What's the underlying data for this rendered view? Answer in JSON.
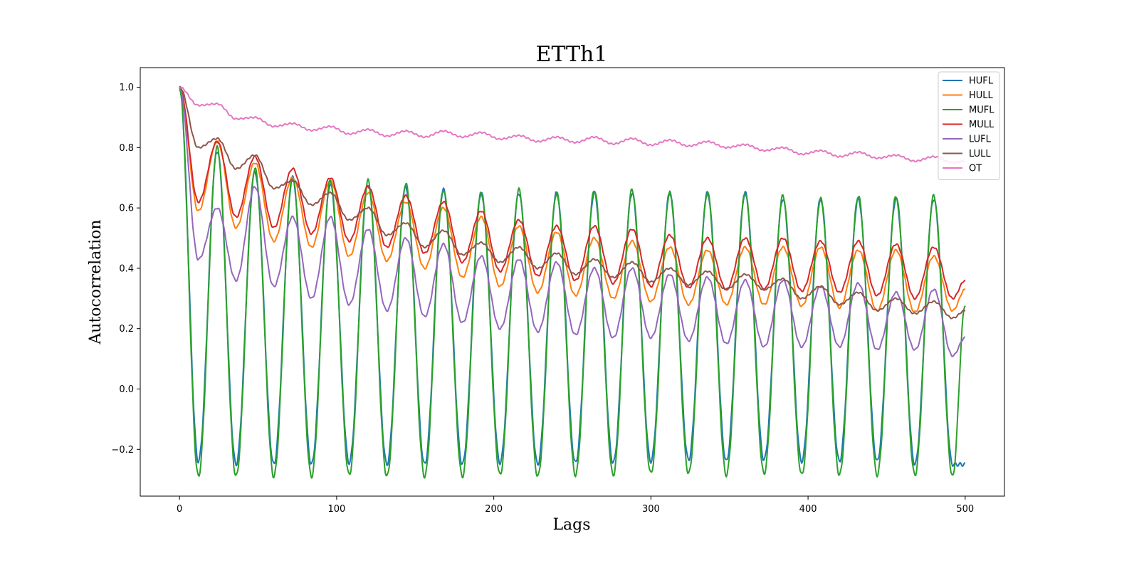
{
  "chart_data": {
    "type": "line",
    "title": "ETTh1",
    "xlabel": "Lags",
    "ylabel": "Autocorrelation",
    "xlim": [
      -25,
      525
    ],
    "ylim": [
      -0.355,
      1.065
    ],
    "x_range": [
      0,
      500
    ],
    "xticks": [
      0,
      100,
      200,
      300,
      400,
      500
    ],
    "yticks": [
      -0.2,
      0.0,
      0.2,
      0.4,
      0.6,
      0.8,
      1.0
    ],
    "ytick_labels": [
      "−0.2",
      "0.0",
      "0.2",
      "0.4",
      "0.6",
      "0.8",
      "1.0"
    ],
    "grid": false,
    "legend_position": "top-right",
    "series": [
      {
        "name": "HUFL",
        "color": "#1f77b4",
        "period": 24,
        "peaks": [
          [
            0,
            1.0
          ],
          [
            24,
            0.79
          ],
          [
            48,
            0.72
          ],
          [
            72,
            0.7
          ],
          [
            96,
            0.68
          ],
          [
            120,
            0.68
          ],
          [
            144,
            0.67
          ],
          [
            168,
            0.66
          ],
          [
            192,
            0.65
          ],
          [
            216,
            0.65
          ],
          [
            240,
            0.65
          ],
          [
            264,
            0.65
          ],
          [
            288,
            0.65
          ],
          [
            312,
            0.65
          ],
          [
            336,
            0.65
          ],
          [
            360,
            0.65
          ],
          [
            384,
            0.63
          ],
          [
            408,
            0.63
          ],
          [
            432,
            0.63
          ],
          [
            456,
            0.63
          ],
          [
            480,
            0.63
          ]
        ],
        "troughs": [
          [
            12,
            -0.24
          ],
          [
            36,
            -0.25
          ],
          [
            60,
            -0.25
          ],
          [
            84,
            -0.25
          ],
          [
            108,
            -0.245
          ],
          [
            132,
            -0.25
          ],
          [
            156,
            -0.25
          ],
          [
            180,
            -0.25
          ],
          [
            204,
            -0.245
          ],
          [
            228,
            -0.25
          ],
          [
            252,
            -0.245
          ],
          [
            276,
            -0.245
          ],
          [
            300,
            -0.24
          ],
          [
            324,
            -0.235
          ],
          [
            348,
            -0.24
          ],
          [
            372,
            -0.235
          ],
          [
            396,
            -0.24
          ],
          [
            420,
            -0.24
          ],
          [
            444,
            -0.24
          ],
          [
            468,
            -0.25
          ],
          [
            492,
            -0.25
          ]
        ]
      },
      {
        "name": "HULL",
        "color": "#ff7f0e",
        "period": 24,
        "peaks": [
          [
            0,
            1.0
          ],
          [
            24,
            0.82
          ],
          [
            48,
            0.75
          ],
          [
            72,
            0.7
          ],
          [
            96,
            0.69
          ],
          [
            120,
            0.65
          ],
          [
            144,
            0.62
          ],
          [
            168,
            0.6
          ],
          [
            192,
            0.57
          ],
          [
            216,
            0.54
          ],
          [
            240,
            0.52
          ],
          [
            264,
            0.5
          ],
          [
            288,
            0.49
          ],
          [
            312,
            0.47
          ],
          [
            336,
            0.46
          ],
          [
            360,
            0.47
          ],
          [
            384,
            0.47
          ],
          [
            408,
            0.47
          ],
          [
            432,
            0.46
          ],
          [
            456,
            0.46
          ],
          [
            480,
            0.44
          ]
        ],
        "troughs": [
          [
            12,
            0.59
          ],
          [
            36,
            0.535
          ],
          [
            60,
            0.49
          ],
          [
            84,
            0.47
          ],
          [
            108,
            0.44
          ],
          [
            132,
            0.425
          ],
          [
            156,
            0.4
          ],
          [
            180,
            0.37
          ],
          [
            204,
            0.34
          ],
          [
            228,
            0.32
          ],
          [
            252,
            0.31
          ],
          [
            276,
            0.3
          ],
          [
            300,
            0.29
          ],
          [
            324,
            0.28
          ],
          [
            348,
            0.28
          ],
          [
            372,
            0.28
          ],
          [
            396,
            0.275
          ],
          [
            420,
            0.27
          ],
          [
            444,
            0.26
          ],
          [
            468,
            0.255
          ],
          [
            492,
            0.26
          ]
        ],
        "end": [
          500,
          0.33
        ]
      },
      {
        "name": "MUFL",
        "color": "#2ca02c",
        "period": 24,
        "peaks": [
          [
            0,
            1.0
          ],
          [
            24,
            0.8
          ],
          [
            48,
            0.73
          ],
          [
            72,
            0.7
          ],
          [
            96,
            0.69
          ],
          [
            120,
            0.69
          ],
          [
            144,
            0.68
          ],
          [
            168,
            0.66
          ],
          [
            192,
            0.65
          ],
          [
            216,
            0.66
          ],
          [
            240,
            0.65
          ],
          [
            264,
            0.66
          ],
          [
            288,
            0.66
          ],
          [
            312,
            0.65
          ],
          [
            336,
            0.65
          ],
          [
            360,
            0.65
          ],
          [
            384,
            0.64
          ],
          [
            408,
            0.63
          ],
          [
            432,
            0.64
          ],
          [
            456,
            0.64
          ],
          [
            480,
            0.64
          ]
        ],
        "troughs": [
          [
            12,
            -0.29
          ],
          [
            36,
            -0.29
          ],
          [
            60,
            -0.29
          ],
          [
            84,
            -0.29
          ],
          [
            108,
            -0.285
          ],
          [
            132,
            -0.29
          ],
          [
            156,
            -0.29
          ],
          [
            180,
            -0.29
          ],
          [
            204,
            -0.285
          ],
          [
            228,
            -0.29
          ],
          [
            252,
            -0.285
          ],
          [
            276,
            -0.285
          ],
          [
            300,
            -0.28
          ],
          [
            324,
            -0.28
          ],
          [
            348,
            -0.285
          ],
          [
            372,
            -0.28
          ],
          [
            396,
            -0.285
          ],
          [
            420,
            -0.285
          ],
          [
            444,
            -0.285
          ],
          [
            468,
            -0.285
          ],
          [
            492,
            -0.29
          ]
        ],
        "end": [
          500,
          0.28
        ]
      },
      {
        "name": "MULL",
        "color": "#d62728",
        "period": 24,
        "peaks": [
          [
            0,
            1.0
          ],
          [
            24,
            0.82
          ],
          [
            48,
            0.77
          ],
          [
            72,
            0.73
          ],
          [
            96,
            0.7
          ],
          [
            120,
            0.67
          ],
          [
            144,
            0.64
          ],
          [
            168,
            0.62
          ],
          [
            192,
            0.59
          ],
          [
            216,
            0.56
          ],
          [
            240,
            0.54
          ],
          [
            264,
            0.54
          ],
          [
            288,
            0.53
          ],
          [
            312,
            0.51
          ],
          [
            336,
            0.5
          ],
          [
            360,
            0.5
          ],
          [
            384,
            0.5
          ],
          [
            408,
            0.49
          ],
          [
            432,
            0.49
          ],
          [
            456,
            0.48
          ],
          [
            480,
            0.47
          ]
        ],
        "troughs": [
          [
            12,
            0.62
          ],
          [
            36,
            0.57
          ],
          [
            60,
            0.535
          ],
          [
            84,
            0.515
          ],
          [
            108,
            0.49
          ],
          [
            132,
            0.47
          ],
          [
            156,
            0.45
          ],
          [
            180,
            0.42
          ],
          [
            204,
            0.39
          ],
          [
            228,
            0.375
          ],
          [
            252,
            0.36
          ],
          [
            276,
            0.35
          ],
          [
            300,
            0.34
          ],
          [
            324,
            0.335
          ],
          [
            348,
            0.33
          ],
          [
            372,
            0.33
          ],
          [
            396,
            0.325
          ],
          [
            420,
            0.32
          ],
          [
            444,
            0.31
          ],
          [
            468,
            0.3
          ],
          [
            492,
            0.3
          ]
        ],
        "end": [
          500,
          0.36
        ]
      },
      {
        "name": "LUFL",
        "color": "#9467bd",
        "period": 24,
        "peaks": [
          [
            0,
            1.0
          ],
          [
            24,
            0.6
          ],
          [
            48,
            0.67
          ],
          [
            72,
            0.57
          ],
          [
            96,
            0.57
          ],
          [
            120,
            0.53
          ],
          [
            144,
            0.5
          ],
          [
            168,
            0.48
          ],
          [
            192,
            0.44
          ],
          [
            216,
            0.43
          ],
          [
            240,
            0.42
          ],
          [
            264,
            0.4
          ],
          [
            288,
            0.4
          ],
          [
            312,
            0.38
          ],
          [
            336,
            0.37
          ],
          [
            360,
            0.36
          ],
          [
            384,
            0.36
          ],
          [
            408,
            0.34
          ],
          [
            432,
            0.35
          ],
          [
            456,
            0.32
          ],
          [
            480,
            0.33
          ]
        ],
        "troughs": [
          [
            12,
            0.43
          ],
          [
            36,
            0.36
          ],
          [
            60,
            0.34
          ],
          [
            84,
            0.3
          ],
          [
            108,
            0.28
          ],
          [
            132,
            0.26
          ],
          [
            156,
            0.24
          ],
          [
            180,
            0.22
          ],
          [
            204,
            0.2
          ],
          [
            228,
            0.19
          ],
          [
            252,
            0.18
          ],
          [
            276,
            0.17
          ],
          [
            300,
            0.17
          ],
          [
            324,
            0.16
          ],
          [
            348,
            0.15
          ],
          [
            372,
            0.14
          ],
          [
            396,
            0.14
          ],
          [
            420,
            0.14
          ],
          [
            444,
            0.13
          ],
          [
            468,
            0.13
          ],
          [
            492,
            0.11
          ]
        ],
        "end": [
          500,
          0.17
        ]
      },
      {
        "name": "LULL",
        "color": "#8c564b",
        "period": 24,
        "peaks": [
          [
            0,
            1.0
          ],
          [
            24,
            0.83
          ],
          [
            48,
            0.775
          ],
          [
            72,
            0.69
          ],
          [
            96,
            0.65
          ],
          [
            120,
            0.6
          ],
          [
            144,
            0.55
          ],
          [
            168,
            0.525
          ],
          [
            192,
            0.485
          ],
          [
            216,
            0.47
          ],
          [
            240,
            0.45
          ],
          [
            264,
            0.43
          ],
          [
            288,
            0.42
          ],
          [
            312,
            0.4
          ],
          [
            336,
            0.39
          ],
          [
            360,
            0.38
          ],
          [
            384,
            0.365
          ],
          [
            408,
            0.34
          ],
          [
            432,
            0.32
          ],
          [
            456,
            0.3
          ],
          [
            480,
            0.29
          ]
        ],
        "troughs": [
          [
            12,
            0.8
          ],
          [
            36,
            0.73
          ],
          [
            60,
            0.665
          ],
          [
            84,
            0.61
          ],
          [
            108,
            0.56
          ],
          [
            132,
            0.51
          ],
          [
            156,
            0.47
          ],
          [
            180,
            0.445
          ],
          [
            204,
            0.42
          ],
          [
            228,
            0.4
          ],
          [
            252,
            0.38
          ],
          [
            276,
            0.37
          ],
          [
            300,
            0.355
          ],
          [
            324,
            0.345
          ],
          [
            348,
            0.33
          ],
          [
            372,
            0.33
          ],
          [
            396,
            0.3
          ],
          [
            420,
            0.28
          ],
          [
            444,
            0.26
          ],
          [
            468,
            0.25
          ],
          [
            492,
            0.235
          ]
        ],
        "end": [
          500,
          0.26
        ]
      },
      {
        "name": "OT",
        "color": "#e377c2",
        "period": 24,
        "peaks": [
          [
            0,
            1.0
          ],
          [
            24,
            0.945
          ],
          [
            48,
            0.9
          ],
          [
            72,
            0.88
          ],
          [
            96,
            0.87
          ],
          [
            120,
            0.86
          ],
          [
            144,
            0.855
          ],
          [
            168,
            0.855
          ],
          [
            192,
            0.85
          ],
          [
            216,
            0.84
          ],
          [
            240,
            0.835
          ],
          [
            264,
            0.835
          ],
          [
            288,
            0.83
          ],
          [
            312,
            0.825
          ],
          [
            336,
            0.82
          ],
          [
            360,
            0.81
          ],
          [
            384,
            0.8
          ],
          [
            408,
            0.79
          ],
          [
            432,
            0.785
          ],
          [
            456,
            0.775
          ],
          [
            480,
            0.77
          ]
        ],
        "troughs": [
          [
            12,
            0.94
          ],
          [
            36,
            0.895
          ],
          [
            60,
            0.87
          ],
          [
            84,
            0.857
          ],
          [
            108,
            0.845
          ],
          [
            132,
            0.838
          ],
          [
            156,
            0.835
          ],
          [
            180,
            0.835
          ],
          [
            204,
            0.828
          ],
          [
            228,
            0.82
          ],
          [
            252,
            0.817
          ],
          [
            276,
            0.812
          ],
          [
            300,
            0.808
          ],
          [
            324,
            0.805
          ],
          [
            348,
            0.8
          ],
          [
            372,
            0.79
          ],
          [
            396,
            0.778
          ],
          [
            420,
            0.77
          ],
          [
            444,
            0.765
          ],
          [
            468,
            0.755
          ],
          [
            492,
            0.75
          ]
        ],
        "end": [
          500,
          0.755
        ]
      }
    ]
  }
}
